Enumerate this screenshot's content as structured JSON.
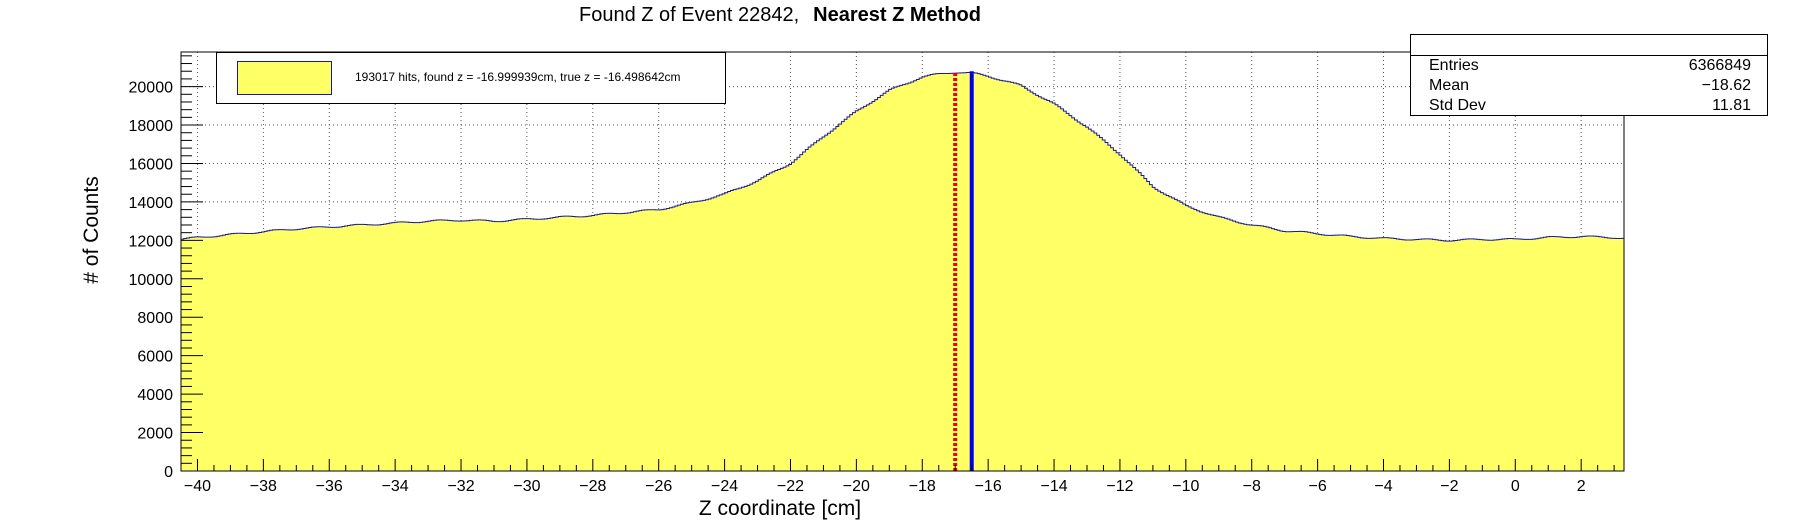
{
  "title": {
    "prefix": "Found Z of Event 22842,",
    "method": "Nearest Z Method"
  },
  "stats_box": {
    "entries_label": "Entries",
    "entries_value": "6366849",
    "mean_label": "Mean",
    "mean_value": "−18.62",
    "stddev_label": "Std Dev",
    "stddev_value": "11.81"
  },
  "legend": {
    "entry": "193017 hits, found z = -16.999939cm, true z = -16.498642cm"
  },
  "colors": {
    "fill": "#ffff66",
    "outline": "#1a1a99",
    "true_line": "#0000ee",
    "found_line": "#ee0000"
  },
  "chart_data": {
    "type": "area",
    "style": "histogram-step",
    "title": "Found Z of Event 22842, Nearest Z Method",
    "xlabel": "Z coordinate [cm]",
    "ylabel": "# of Counts",
    "xlim": [
      -40.5,
      3.3
    ],
    "ylim": [
      0,
      21800
    ],
    "x_ticks": [
      -40,
      -38,
      -36,
      -34,
      -32,
      -30,
      -28,
      -26,
      -24,
      -22,
      -20,
      -18,
      -16,
      -14,
      -12,
      -10,
      -8,
      -6,
      -4,
      -2,
      0,
      2
    ],
    "y_ticks": [
      0,
      2000,
      4000,
      6000,
      8000,
      10000,
      12000,
      14000,
      16000,
      18000,
      20000
    ],
    "grid": true,
    "legend_position": "top-left",
    "series": [
      {
        "name": "193017 hits, found z = -16.999939cm, true z = -16.498642cm",
        "x": [
          -40.5,
          -40.0,
          -39.0,
          -38.0,
          -37.0,
          -36.0,
          -35.0,
          -34.0,
          -33.0,
          -32.0,
          -31.0,
          -30.0,
          -29.0,
          -28.0,
          -27.0,
          -26.0,
          -25.0,
          -24.0,
          -23.0,
          -22.0,
          -21.0,
          -20.0,
          -19.0,
          -18.0,
          -17.5,
          -17.0,
          -16.5,
          -16.0,
          -15.0,
          -14.0,
          -13.0,
          -12.0,
          -11.0,
          -10.0,
          -9.0,
          -8.0,
          -7.0,
          -6.0,
          -5.0,
          -4.0,
          -3.0,
          -2.0,
          -1.0,
          0.0,
          1.0,
          2.0,
          3.0,
          3.3
        ],
        "y": [
          12050,
          12150,
          12300,
          12450,
          12600,
          12700,
          12800,
          12900,
          13000,
          13050,
          13000,
          13100,
          13200,
          13300,
          13450,
          13600,
          13950,
          14400,
          15100,
          16000,
          17400,
          18700,
          19800,
          20500,
          20650,
          20750,
          20700,
          20550,
          20050,
          19100,
          17900,
          16500,
          14800,
          13800,
          13200,
          12800,
          12500,
          12350,
          12200,
          12100,
          12050,
          12000,
          12050,
          12050,
          12150,
          12200,
          12150,
          12100
        ]
      }
    ],
    "markers": [
      {
        "x": -16.999939,
        "style": "dotted",
        "color": "#ee0000"
      },
      {
        "x": -16.498642,
        "style": "solid",
        "color": "#0000ee"
      }
    ]
  }
}
